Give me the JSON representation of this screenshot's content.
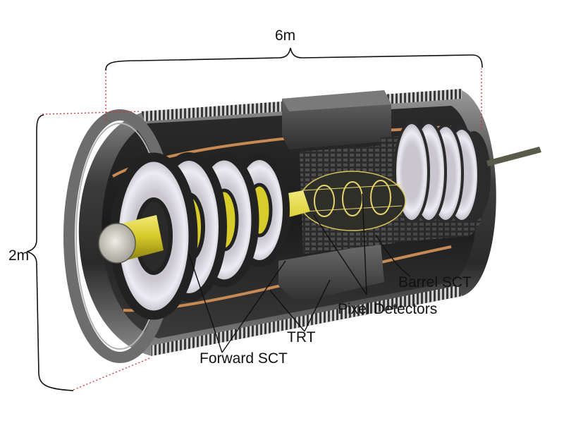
{
  "dimensions": {
    "length": "6m",
    "diameter": "2m"
  },
  "labels": {
    "barrel_sct": "Barrel SCT",
    "pixel_detectors": "Pixel Detectors",
    "trt": "TRT",
    "forward_sct": "Forward SCT"
  },
  "colors": {
    "beam_pipe": "#d8cc2a",
    "beam_pipe_end": "#c9c7bc",
    "support_structure": "#4a4a4a",
    "sct_disk": "#e6e4ea",
    "copper_tube": "#c88a55",
    "dimension_dotted": "#d03030",
    "leader_lines": "#111111"
  }
}
